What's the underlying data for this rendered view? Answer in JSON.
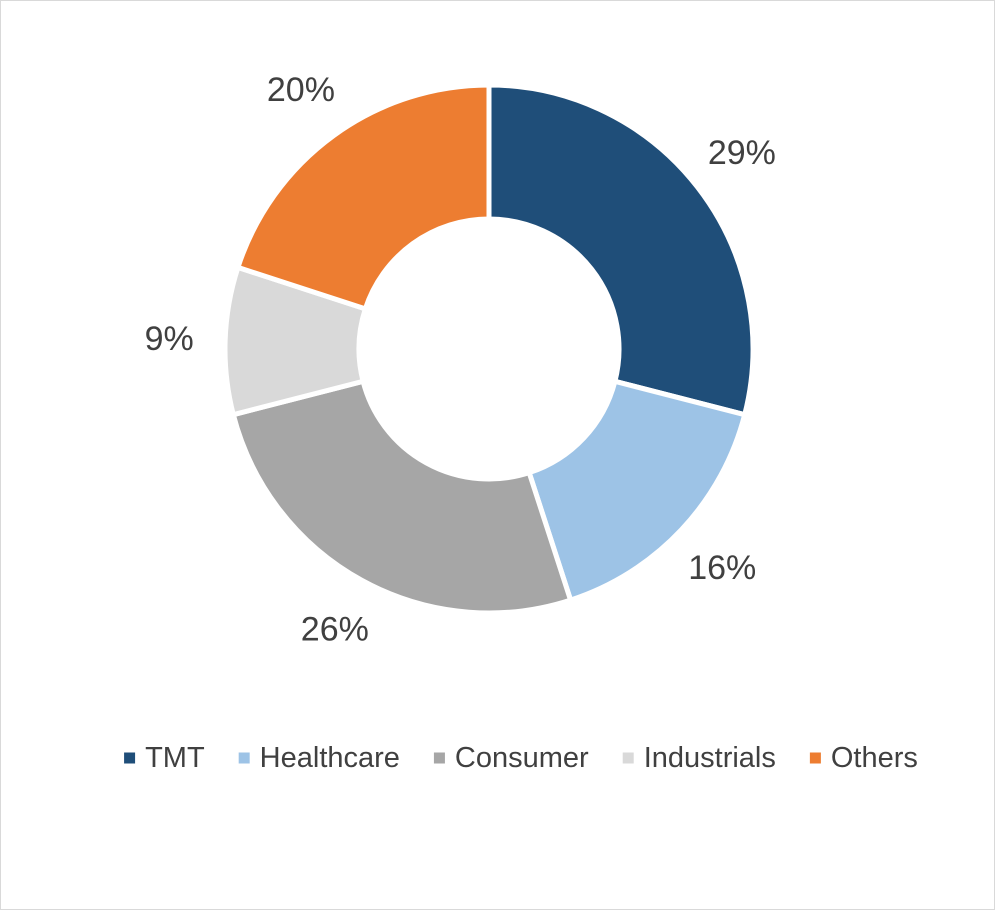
{
  "chart_data": {
    "type": "pie",
    "variant": "donut",
    "categories": [
      "TMT",
      "Healthcare",
      "Consumer",
      "Industrials",
      "Others"
    ],
    "values": [
      29,
      16,
      26,
      9,
      20
    ],
    "value_unit": "%",
    "data_labels": [
      "29%",
      "16%",
      "26%",
      "9%",
      "20%"
    ],
    "colors": [
      "#1f4e79",
      "#9dc3e6",
      "#a6a6a6",
      "#d9d9d9",
      "#ed7d31"
    ],
    "legend": {
      "position": "bottom",
      "entries": [
        "TMT",
        "Healthcare",
        "Consumer",
        "Industrials",
        "Others"
      ]
    },
    "title": ""
  }
}
